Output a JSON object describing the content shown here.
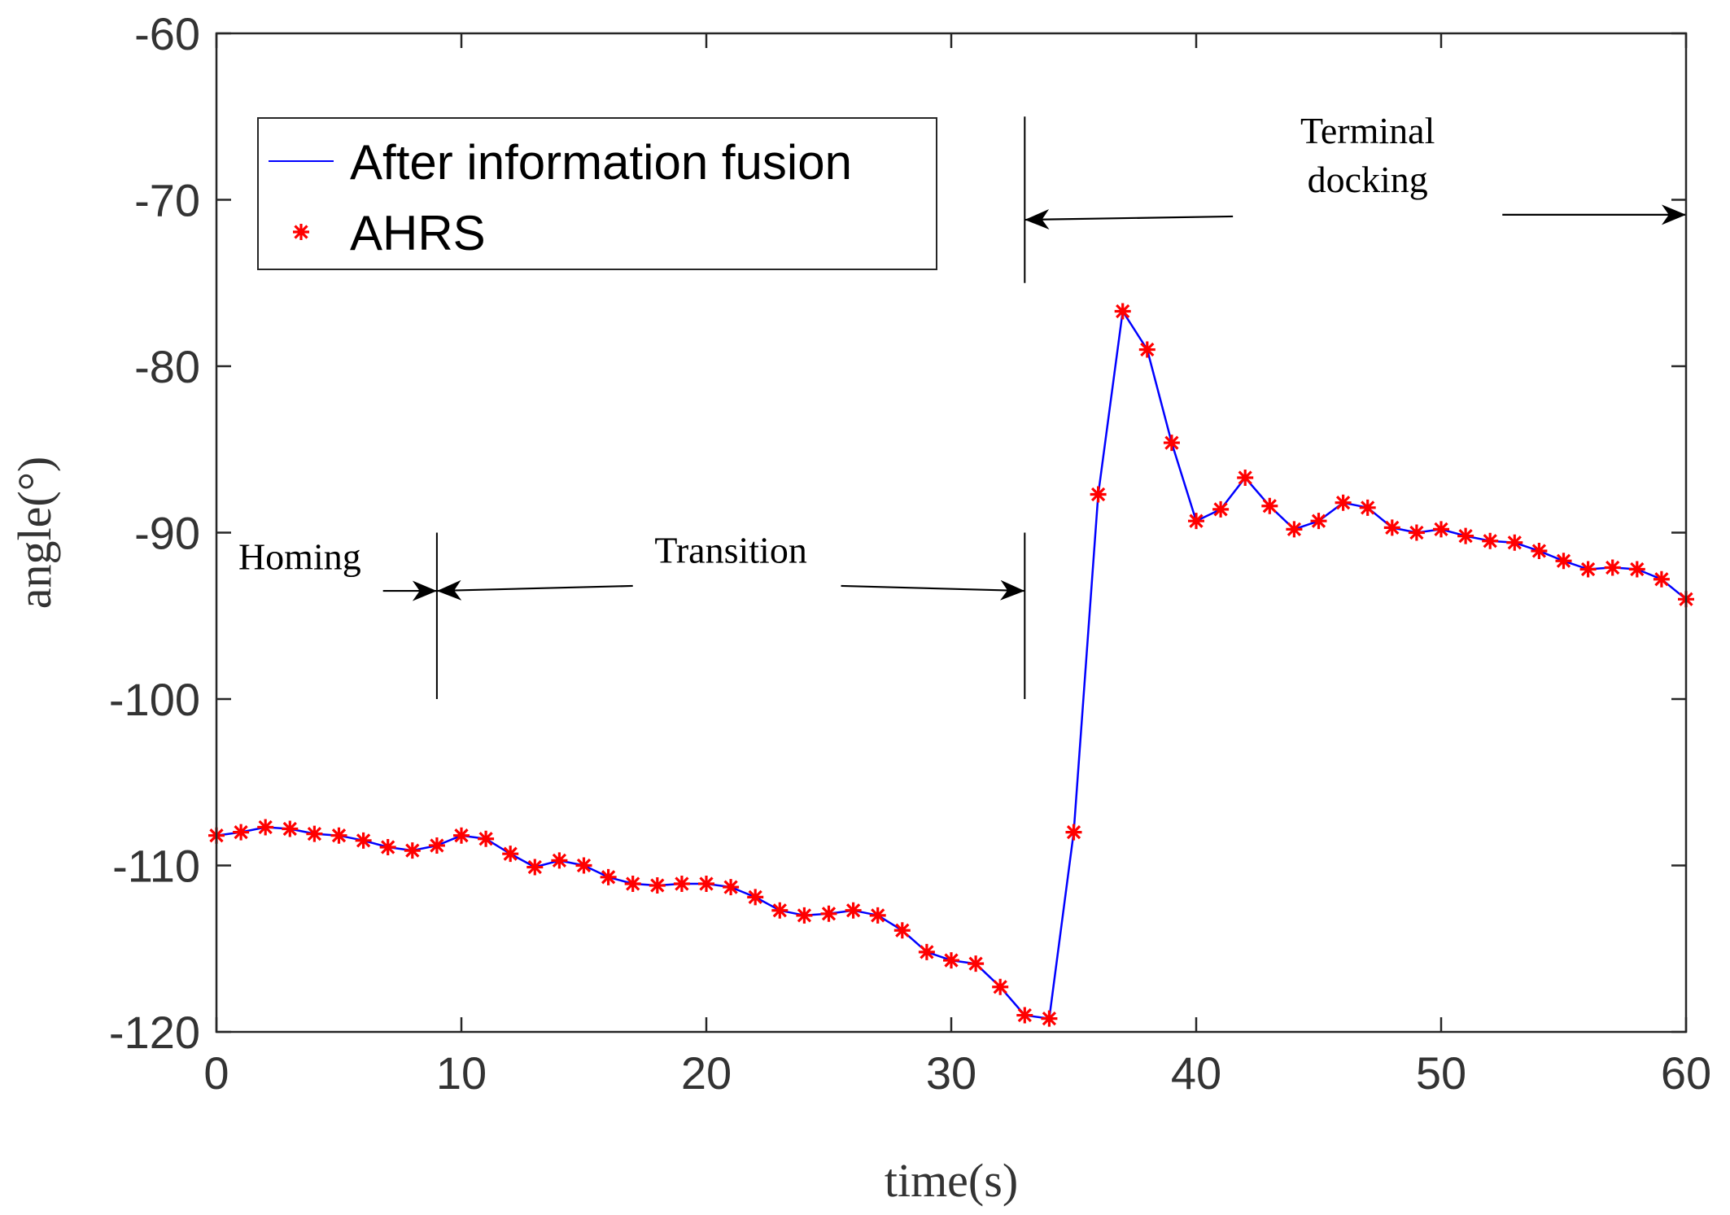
{
  "chart_data": {
    "type": "line",
    "title": "",
    "xlabel": "time(s)",
    "ylabel": "angle(°)",
    "xlim": [
      0,
      60
    ],
    "ylim": [
      -120,
      -60
    ],
    "x_ticks": [
      0,
      10,
      20,
      30,
      40,
      50,
      60
    ],
    "y_ticks": [
      -60,
      -70,
      -80,
      -90,
      -100,
      -110,
      -120
    ],
    "legend_position": "top-left",
    "colors": {
      "line": "#0000ff",
      "marker": "#ff0000",
      "annotation": "#000000",
      "axis": "#262626"
    },
    "series": [
      {
        "name": "After information fusion",
        "style": "line",
        "x": [
          0,
          1,
          2,
          3,
          4,
          5,
          6,
          7,
          8,
          9,
          10,
          11,
          12,
          13,
          14,
          15,
          16,
          17,
          18,
          19,
          20,
          21,
          22,
          23,
          24,
          25,
          26,
          27,
          28,
          29,
          30,
          31,
          32,
          33,
          34,
          35,
          36,
          37,
          38,
          39,
          40,
          41,
          42,
          43,
          44,
          45,
          46,
          47,
          48,
          49,
          50,
          51,
          52,
          53,
          54,
          55,
          56,
          57,
          58,
          59,
          60
        ],
        "values": [
          -108.2,
          -108.0,
          -107.7,
          -107.8,
          -108.1,
          -108.2,
          -108.5,
          -108.9,
          -109.1,
          -108.8,
          -108.2,
          -108.4,
          -109.3,
          -110.1,
          -109.7,
          -110.0,
          -110.7,
          -111.1,
          -111.2,
          -111.1,
          -111.1,
          -111.3,
          -111.9,
          -112.7,
          -113.0,
          -112.9,
          -112.7,
          -113.0,
          -113.9,
          -115.2,
          -115.7,
          -115.9,
          -117.3,
          -119.0,
          -119.2,
          -108.0,
          -87.7,
          -76.7,
          -79.0,
          -84.6,
          -89.3,
          -88.6,
          -86.7,
          -88.4,
          -89.8,
          -89.3,
          -88.2,
          -88.5,
          -89.7,
          -90.0,
          -89.8,
          -90.2,
          -90.5,
          -90.6,
          -91.1,
          -91.7,
          -92.2,
          -92.1,
          -92.2,
          -92.8,
          -94.0
        ]
      },
      {
        "name": "AHRS",
        "style": "marker",
        "x": [
          0,
          1,
          2,
          3,
          4,
          5,
          6,
          7,
          8,
          9,
          10,
          11,
          12,
          13,
          14,
          15,
          16,
          17,
          18,
          19,
          20,
          21,
          22,
          23,
          24,
          25,
          26,
          27,
          28,
          29,
          30,
          31,
          32,
          33,
          34,
          35,
          36,
          37,
          38,
          39,
          40,
          41,
          42,
          43,
          44,
          45,
          46,
          47,
          48,
          49,
          50,
          51,
          52,
          53,
          54,
          55,
          56,
          57,
          58,
          59,
          60
        ],
        "values": [
          -108.2,
          -108.0,
          -107.7,
          -107.8,
          -108.1,
          -108.2,
          -108.5,
          -108.9,
          -109.1,
          -108.8,
          -108.2,
          -108.4,
          -109.3,
          -110.1,
          -109.7,
          -110.0,
          -110.7,
          -111.1,
          -111.2,
          -111.1,
          -111.1,
          -111.3,
          -111.9,
          -112.7,
          -113.0,
          -112.9,
          -112.7,
          -113.0,
          -113.9,
          -115.2,
          -115.7,
          -115.9,
          -117.3,
          -119.0,
          -119.2,
          -108.0,
          -87.7,
          -76.7,
          -79.0,
          -84.6,
          -89.3,
          -88.6,
          -86.7,
          -88.4,
          -89.8,
          -89.3,
          -88.2,
          -88.5,
          -89.7,
          -90.0,
          -89.8,
          -90.2,
          -90.5,
          -90.6,
          -91.1,
          -91.7,
          -92.2,
          -92.1,
          -92.2,
          -92.8,
          -94.0
        ]
      }
    ],
    "annotations": {
      "vlines": [
        {
          "x": 9,
          "y_from": -100,
          "y_to": -90
        },
        {
          "x": 33,
          "y_from": -100,
          "y_to": -90
        },
        {
          "x": 33,
          "y_from": -75,
          "y_to": -65
        }
      ],
      "phases": [
        {
          "label": "Homing",
          "lines": [
            "Homing"
          ],
          "label_x": 3.4,
          "label_y": -92.2,
          "arrows": [
            {
              "x0": 6.8,
              "y0": -93.5,
              "x1": 9,
              "y1": -93.5
            }
          ]
        },
        {
          "label": "Transition",
          "lines": [
            "Transition"
          ],
          "label_x": 21.0,
          "label_y": -91.8,
          "arrows": [
            {
              "x0": 17.0,
              "y0": -93.2,
              "x1": 9,
              "y1": -93.5
            },
            {
              "x0": 25.5,
              "y0": -93.2,
              "x1": 33,
              "y1": -93.5
            }
          ]
        },
        {
          "label": "Terminal docking",
          "lines": [
            "Terminal",
            "docking"
          ],
          "label_x": 47.0,
          "label_y": -66.6,
          "arrows": [
            {
              "x0": 41.5,
              "y0": -71.0,
              "x1": 33,
              "y1": -71.2
            },
            {
              "x0": 52.5,
              "y0": -70.9,
              "x1": 60,
              "y1": -70.9
            }
          ]
        }
      ]
    }
  }
}
